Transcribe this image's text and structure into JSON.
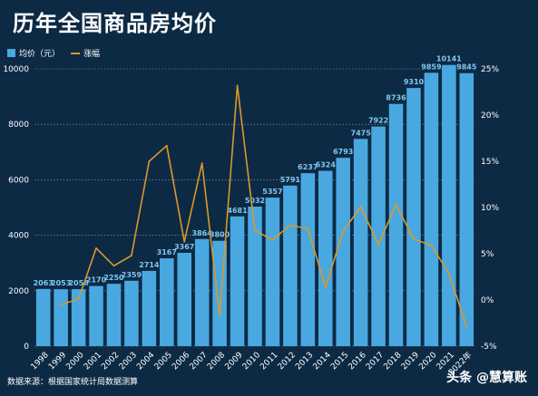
{
  "chart_data": {
    "type": "bar",
    "title": "历年全国商品房均价",
    "categories": [
      "1998",
      "1999",
      "2000",
      "2001",
      "2002",
      "2003",
      "2004",
      "2005",
      "2006",
      "2007",
      "2008",
      "2009",
      "2010",
      "2011",
      "2012",
      "2013",
      "2014",
      "2015",
      "2016",
      "2017",
      "2018",
      "2019",
      "2020",
      "2021",
      "2022年"
    ],
    "series": [
      {
        "name": "均价（元）",
        "type": "bar",
        "axis": "left",
        "color": "#4aa8e0",
        "values": [
          2063,
          2053,
          2056,
          2170,
          2250,
          2359,
          2714,
          3167,
          3367,
          3864,
          3800,
          4681,
          5032,
          5357,
          5791,
          6237,
          6324,
          6793,
          7475,
          7922,
          8736,
          9310,
          9859,
          10141,
          9845
        ]
      },
      {
        "name": "涨幅",
        "type": "line",
        "axis": "right",
        "color": "#d9992b",
        "values": [
          null,
          -0.5,
          0.1,
          5.6,
          3.7,
          4.8,
          15.0,
          16.7,
          6.3,
          14.8,
          -1.7,
          23.2,
          7.5,
          6.5,
          8.1,
          7.7,
          1.4,
          7.4,
          10.1,
          6.0,
          10.3,
          6.6,
          5.9,
          2.9,
          -2.9
        ]
      }
    ],
    "ylim_left": [
      0,
      10000
    ],
    "yticks_left": [
      "0",
      "2000",
      "4000",
      "6000",
      "8000",
      "10000"
    ],
    "ylim_right": [
      -5,
      25
    ],
    "yticks_right": [
      "-5%",
      "0%",
      "5%",
      "10%",
      "15%",
      "20%",
      "25%"
    ],
    "grid": true,
    "legend_position": "top-left"
  },
  "footer": {
    "source": "数据来源：根据国家统计局数据测算",
    "watermark": "头条 @慧算账"
  }
}
